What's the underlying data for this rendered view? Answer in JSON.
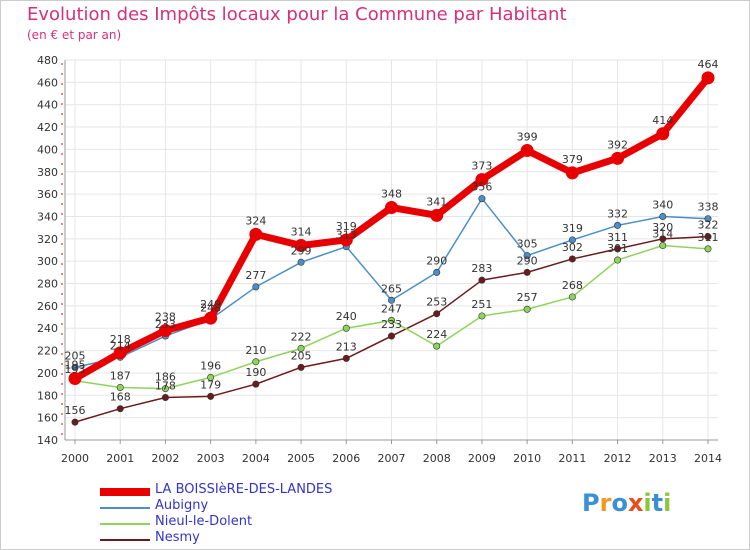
{
  "title": "Evolution des Impôts locaux pour la Commune par Habitant",
  "subtitle": "(en € et par an)",
  "logo": {
    "text": "Proxiti",
    "letters": [
      "P",
      "r",
      "o",
      "x",
      "i",
      "t",
      "i"
    ],
    "colors": [
      "#3a8fd6",
      "#f39a1e",
      "#3a8fd6",
      "#e84e1b",
      "#8cc63f",
      "#3a8fd6",
      "#8cc63f"
    ]
  },
  "chart_data": {
    "type": "line",
    "title": "Evolution des Impôts locaux pour la Commune par Habitant",
    "xlabel": "",
    "ylabel": "(en € et par an)",
    "x": [
      2000,
      2001,
      2002,
      2003,
      2004,
      2005,
      2006,
      2007,
      2008,
      2009,
      2010,
      2011,
      2012,
      2013,
      2014
    ],
    "ylim": [
      140,
      480
    ],
    "yticks": [
      140,
      160,
      180,
      200,
      220,
      240,
      260,
      280,
      300,
      320,
      340,
      360,
      380,
      400,
      420,
      440,
      460,
      480
    ],
    "grid": true,
    "legend_position": "bottom-left",
    "series": [
      {
        "name": "Nesmy",
        "color": "#6b1a1f",
        "values": [
          156,
          168,
          178,
          179,
          190,
          205,
          213,
          233,
          253,
          283,
          290,
          302,
          311,
          320,
          322
        ],
        "labels": [
          "156",
          "168",
          "178",
          "179",
          "190",
          "205",
          "213",
          "233",
          "253",
          "283",
          "290",
          "302",
          "311",
          "320",
          "322"
        ]
      },
      {
        "name": "Nieul-le-Dolent",
        "color": "#8fd45a",
        "values": [
          193,
          187,
          186,
          196,
          210,
          222,
          240,
          247,
          224,
          251,
          257,
          268,
          301,
          314,
          311
        ],
        "labels": [
          "193",
          "187",
          "186",
          "196",
          "210",
          "222",
          "240",
          "247",
          "224",
          "251",
          "257",
          "268",
          "301",
          "314",
          "311"
        ]
      },
      {
        "name": "Aubigny",
        "color": "#4a8fc7",
        "values": [
          205,
          214,
          233,
          248,
          277,
          299,
          313,
          265,
          290,
          356,
          305,
          319,
          332,
          340,
          338
        ],
        "labels": [
          "205",
          "214",
          "233",
          "248",
          "277",
          "299",
          "313",
          "265",
          "290",
          "356",
          "305",
          "319",
          "332",
          "340",
          "338"
        ]
      },
      {
        "name": "LA BOISSIèRE-DES-LANDES",
        "color": "#e80000",
        "values": [
          195,
          218,
          238,
          249,
          324,
          314,
          319,
          348,
          341,
          373,
          399,
          379,
          392,
          414,
          464
        ],
        "labels": [
          "195",
          "218",
          "238",
          "249",
          "324",
          "314",
          "319",
          "348",
          "341",
          "373",
          "399",
          "379",
          "392",
          "414",
          "464"
        ]
      }
    ]
  },
  "legend": [
    {
      "name": "LA BOISSIèRE-DES-LANDES",
      "color": "#e80000",
      "thickness": 8
    },
    {
      "name": "Aubigny",
      "color": "#4a8fc7",
      "thickness": 2
    },
    {
      "name": "Nieul-le-Dolent",
      "color": "#8fd45a",
      "thickness": 2
    },
    {
      "name": "Nesmy",
      "color": "#6b1a1f",
      "thickness": 2
    }
  ]
}
